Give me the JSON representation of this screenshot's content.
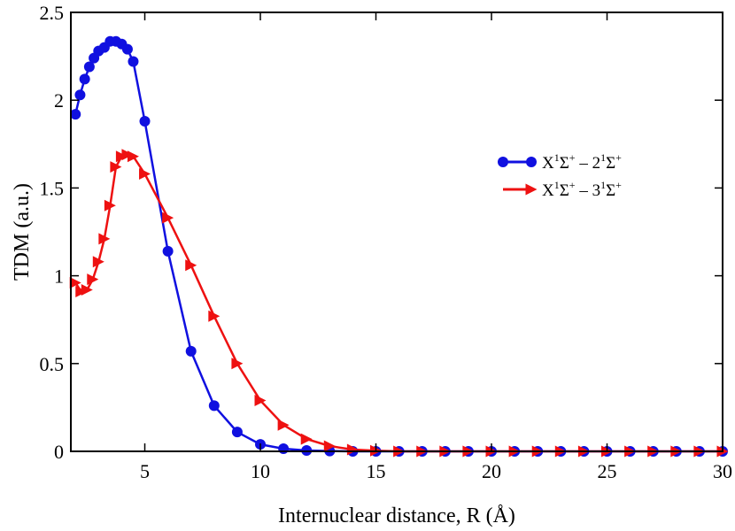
{
  "chart_data": {
    "type": "line",
    "title": "",
    "xlabel": "Internuclear distance, R (Å)",
    "ylabel": "TDM (a.u.)",
    "xlim": [
      1.8,
      30
    ],
    "ylim": [
      0,
      2.5
    ],
    "x_ticks": [
      5,
      10,
      15,
      20,
      25,
      30
    ],
    "x_tick_labels": [
      "5",
      "10",
      "15",
      "20",
      "25",
      "30"
    ],
    "y_ticks": [
      0,
      0.5,
      1,
      1.5,
      2,
      2.5
    ],
    "y_tick_labels": [
      "0",
      "0.5",
      "1",
      "1.5",
      "2",
      "2.5"
    ],
    "grid": false,
    "legend_position": "right",
    "series": [
      {
        "name": "X¹Σ⁺ – 2¹Σ⁺",
        "legend_main": "X",
        "legend_sup1": "1",
        "legend_mid": "Σ",
        "legend_sup2": "+",
        "legend_dash": " – 2",
        "legend_sup3": "1",
        "legend_end": "Σ",
        "legend_sup4": "+",
        "color": "#1010e0",
        "marker": "circle",
        "x": [
          2.0,
          2.2,
          2.4,
          2.6,
          2.8,
          3.0,
          3.25,
          3.5,
          3.75,
          4.0,
          4.25,
          4.5,
          5.0,
          6.0,
          7.0,
          8.0,
          9.0,
          10.0,
          11.0,
          12.0,
          13.0,
          14.0,
          15.0,
          16.0,
          17.0,
          18.0,
          19.0,
          20.0,
          21.0,
          22.0,
          23.0,
          24.0,
          25.0,
          26.0,
          27.0,
          28.0,
          29.0,
          30.0
        ],
        "y": [
          1.92,
          2.03,
          2.12,
          2.19,
          2.24,
          2.28,
          2.3,
          2.335,
          2.335,
          2.32,
          2.29,
          2.22,
          1.88,
          1.14,
          0.57,
          0.26,
          0.11,
          0.04,
          0.015,
          0.005,
          0.002,
          0.0,
          0.0,
          0.0,
          0.0,
          0.0,
          0.0,
          0.0,
          0.0,
          0.0,
          0.0,
          0.0,
          0.0,
          0.0,
          0.0,
          0.0,
          0.0,
          0.0
        ]
      },
      {
        "name": "X¹Σ⁺ – 3¹Σ⁺",
        "legend_main": "X",
        "legend_sup1": "1",
        "legend_mid": "Σ",
        "legend_sup2": "+",
        "legend_dash": " – 3",
        "legend_sup3": "1",
        "legend_end": "Σ",
        "legend_sup4": "+",
        "color": "#ee1111",
        "marker": "triangle-right",
        "x": [
          2.0,
          2.25,
          2.5,
          2.75,
          3.0,
          3.25,
          3.5,
          3.75,
          4.0,
          4.25,
          4.5,
          5.0,
          6.0,
          7.0,
          8.0,
          9.0,
          10.0,
          11.0,
          12.0,
          13.0,
          14.0,
          15.0,
          16.0,
          17.0,
          18.0,
          19.0,
          20.0,
          21.0,
          22.0,
          23.0,
          24.0,
          25.0,
          26.0,
          27.0,
          28.0,
          29.0,
          30.0
        ],
        "y": [
          0.96,
          0.91,
          0.92,
          0.98,
          1.08,
          1.21,
          1.4,
          1.62,
          1.68,
          1.69,
          1.68,
          1.58,
          1.33,
          1.06,
          0.77,
          0.5,
          0.29,
          0.15,
          0.07,
          0.03,
          0.01,
          0.004,
          0.0,
          0.0,
          0.0,
          0.0,
          0.0,
          0.0,
          0.0,
          0.0,
          0.0,
          0.0,
          0.0,
          0.0,
          0.0,
          0.0,
          0.0
        ]
      }
    ]
  }
}
